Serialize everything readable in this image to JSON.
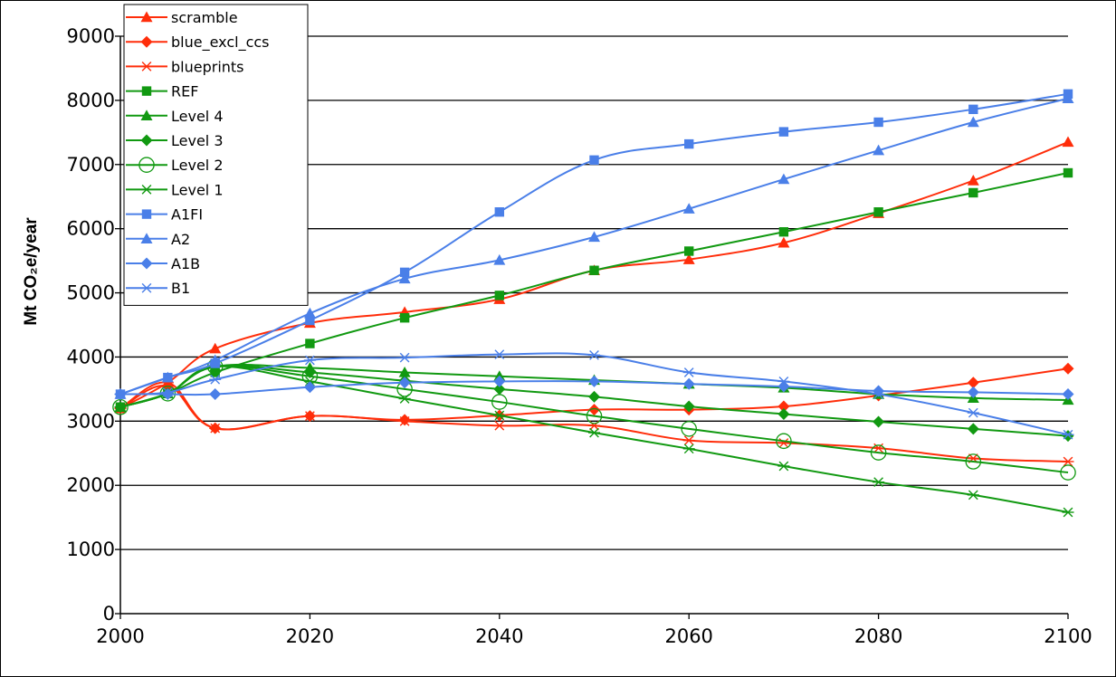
{
  "chart_data": {
    "type": "line",
    "title": "",
    "xlabel": "",
    "ylabel": "Mt CO₂e/year",
    "xlim": [
      2000,
      2100
    ],
    "ylim": [
      0,
      9000
    ],
    "xticks": [
      2000,
      2020,
      2040,
      2060,
      2080,
      2100
    ],
    "yticks": [
      0,
      1000,
      2000,
      3000,
      4000,
      5000,
      6000,
      7000,
      8000,
      9000
    ],
    "grid": "horizontal",
    "legend_position": "top-left",
    "series": [
      {
        "name": "scramble",
        "color": "#FF2D0A",
        "marker": "triangle",
        "x": [
          2000,
          2005,
          2010,
          2020,
          2030,
          2040,
          2050,
          2060,
          2070,
          2080,
          2090,
          2100
        ],
        "y": [
          3200,
          3600,
          4130,
          4530,
          4700,
          4900,
          5350,
          5520,
          5780,
          6240,
          6750,
          7350
        ]
      },
      {
        "name": "blue_excl_ccs",
        "color": "#FF2D0A",
        "marker": "diamond",
        "x": [
          2000,
          2005,
          2010,
          2020,
          2030,
          2040,
          2050,
          2060,
          2070,
          2080,
          2090,
          2100
        ],
        "y": [
          3200,
          3550,
          2890,
          3080,
          3020,
          3090,
          3180,
          3180,
          3230,
          3400,
          3600,
          3820
        ]
      },
      {
        "name": "blueprints",
        "color": "#FF2D0A",
        "marker": "star",
        "x": [
          2000,
          2005,
          2010,
          2020,
          2030,
          2040,
          2050,
          2060,
          2070,
          2080,
          2090,
          2100
        ],
        "y": [
          3200,
          3600,
          2890,
          3080,
          3000,
          2930,
          2930,
          2700,
          2660,
          2580,
          2420,
          2370
        ]
      },
      {
        "name": "REF",
        "color": "#119911",
        "marker": "square",
        "x": [
          2000,
          2005,
          2010,
          2020,
          2030,
          2040,
          2050,
          2060,
          2070,
          2080,
          2090,
          2100
        ],
        "y": [
          3220,
          3430,
          3760,
          4210,
          4610,
          4960,
          5350,
          5650,
          5950,
          6260,
          6560,
          6870
        ]
      },
      {
        "name": "Level 4",
        "color": "#119911",
        "marker": "triangle",
        "x": [
          2000,
          2005,
          2010,
          2020,
          2030,
          2040,
          2050,
          2060,
          2070,
          2080,
          2090,
          2100
        ],
        "y": [
          3220,
          3430,
          3850,
          3830,
          3760,
          3700,
          3640,
          3580,
          3520,
          3420,
          3360,
          3330
        ]
      },
      {
        "name": "Level 3",
        "color": "#119911",
        "marker": "diamond",
        "x": [
          2000,
          2005,
          2010,
          2020,
          2030,
          2040,
          2050,
          2060,
          2070,
          2080,
          2090,
          2100
        ],
        "y": [
          3220,
          3430,
          3850,
          3760,
          3630,
          3500,
          3380,
          3230,
          3110,
          2990,
          2880,
          2770
        ]
      },
      {
        "name": "Level 2",
        "color": "#119911",
        "marker": "circle",
        "x": [
          2000,
          2005,
          2010,
          2020,
          2030,
          2040,
          2050,
          2060,
          2070,
          2080,
          2090,
          2100
        ],
        "y": [
          3220,
          3430,
          3850,
          3700,
          3500,
          3300,
          3080,
          2880,
          2690,
          2510,
          2370,
          2200
        ]
      },
      {
        "name": "Level 1",
        "color": "#119911",
        "marker": "star",
        "x": [
          2000,
          2005,
          2010,
          2020,
          2030,
          2040,
          2050,
          2060,
          2070,
          2080,
          2090,
          2100
        ],
        "y": [
          3220,
          3430,
          3850,
          3620,
          3350,
          3090,
          2820,
          2570,
          2300,
          2050,
          1850,
          1580
        ]
      },
      {
        "name": "A1FI",
        "color": "#4A7FE8",
        "marker": "square",
        "x": [
          2000,
          2005,
          2010,
          2020,
          2030,
          2040,
          2050,
          2060,
          2070,
          2080,
          2090,
          2100
        ],
        "y": [
          3420,
          3680,
          3900,
          4570,
          5320,
          6260,
          7070,
          7320,
          7510,
          7660,
          7860,
          8100
        ]
      },
      {
        "name": "A2",
        "color": "#4A7FE8",
        "marker": "triangle",
        "x": [
          2000,
          2005,
          2010,
          2020,
          2030,
          2040,
          2050,
          2060,
          2070,
          2080,
          2090,
          2100
        ],
        "y": [
          3420,
          3680,
          3950,
          4680,
          5220,
          5510,
          5870,
          6310,
          6770,
          7220,
          7660,
          8030
        ]
      },
      {
        "name": "A1B",
        "color": "#4A7FE8",
        "marker": "diamond",
        "x": [
          2000,
          2005,
          2010,
          2020,
          2030,
          2040,
          2050,
          2060,
          2070,
          2080,
          2090,
          2100
        ],
        "y": [
          3420,
          3420,
          3420,
          3530,
          3600,
          3620,
          3620,
          3580,
          3540,
          3470,
          3450,
          3420
        ]
      },
      {
        "name": "B1",
        "color": "#4A7FE8",
        "marker": "star",
        "x": [
          2000,
          2005,
          2010,
          2020,
          2030,
          2040,
          2050,
          2060,
          2070,
          2080,
          2090,
          2100
        ],
        "y": [
          3420,
          3450,
          3650,
          3950,
          3990,
          4040,
          4030,
          3760,
          3620,
          3420,
          3130,
          2790
        ]
      }
    ]
  }
}
